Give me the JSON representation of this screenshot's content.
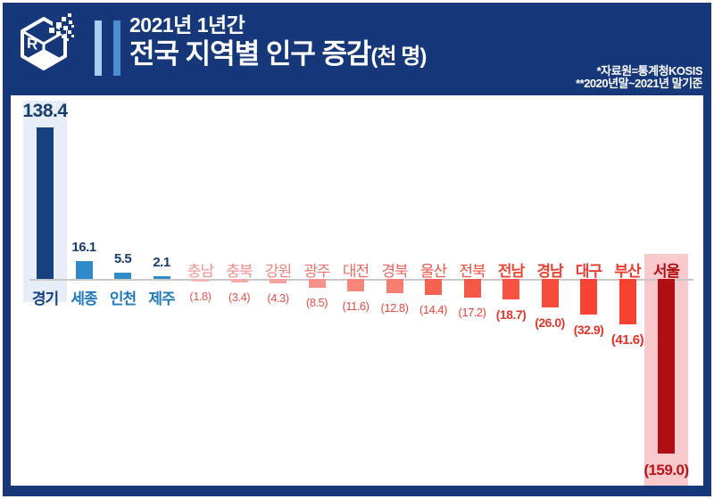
{
  "header": {
    "title_line1": "2021년 1년간",
    "title_line2": "전국 지역별 인구 증감",
    "title_unit": "(천 명)",
    "source_line1": "*자료원=통계청KOSIS",
    "source_line2": "**2020년말~2021년 말기준",
    "logo_name": "r-cube-pixel-logo"
  },
  "colors": {
    "frame": "#16387b",
    "header_bg": "#16387b",
    "title_text": "#ffffff",
    "accent_bar_light": "#a9cdee",
    "accent_bar_medium": "#4b8ed2",
    "axis": "#c8c8c8",
    "highlight_gyeonggi": "#e7eef8",
    "highlight_seoul": "#fac9cc"
  },
  "chart_data": {
    "type": "bar",
    "title": "전국 지역별 인구 증감(천 명)",
    "subtitle": "2021년 1년간",
    "unit": "천 명",
    "orientation": "vertical",
    "grid": false,
    "legend": false,
    "baseline": 0,
    "ylim": [
      -159.0,
      138.4
    ],
    "categories": [
      "경기",
      "세종",
      "인천",
      "제주",
      "충남",
      "충북",
      "강원",
      "광주",
      "대전",
      "경북",
      "울산",
      "전북",
      "전남",
      "경남",
      "대구",
      "부산",
      "서울"
    ],
    "values": [
      138.4,
      16.1,
      5.5,
      2.1,
      -1.8,
      -3.4,
      -4.3,
      -8.5,
      -11.6,
      -12.8,
      -14.4,
      -17.2,
      -18.7,
      -26.0,
      -32.9,
      -41.6,
      -159.0
    ],
    "value_labels": [
      "138.4",
      "16.1",
      "5.5",
      "2.1",
      "(1.8)",
      "(3.4)",
      "(4.3)",
      "(8.5)",
      "(11.6)",
      "(12.8)",
      "(14.4)",
      "(17.2)",
      "(18.7)",
      "(26.0)",
      "(32.9)",
      "(41.6)",
      "(159.0)"
    ],
    "highlighted_categories": [
      "경기",
      "서울"
    ],
    "regions": [
      {
        "id": "gyeonggi",
        "name": "경기",
        "value": 138.4,
        "display": "138.4",
        "bar": "#15417e",
        "nameColor": "#15417e",
        "valueColor": "#173e6d",
        "bold": true,
        "highlight": "#e7eef8"
      },
      {
        "id": "sejong",
        "name": "세종",
        "value": 16.1,
        "display": "16.1",
        "bar": "#2f8ac9",
        "nameColor": "#1f7ab9",
        "valueColor": "#173e6d",
        "bold": true,
        "highlight": null
      },
      {
        "id": "incheon",
        "name": "인천",
        "value": 5.5,
        "display": "5.5",
        "bar": "#2f8ac9",
        "nameColor": "#1f7ab9",
        "valueColor": "#173e6d",
        "bold": true,
        "highlight": null
      },
      {
        "id": "jeju",
        "name": "제주",
        "value": 2.1,
        "display": "2.1",
        "bar": "#2f8ac9",
        "nameColor": "#1f7ab9",
        "valueColor": "#173e6d",
        "bold": true,
        "highlight": null
      },
      {
        "id": "chungnam",
        "name": "충남",
        "value": -1.8,
        "display": "(1.8)",
        "bar": "#f7b6b2",
        "nameColor": "#f09490",
        "valueColor": "#e8564f",
        "bold": false,
        "highlight": null
      },
      {
        "id": "chungbuk",
        "name": "충북",
        "value": -3.4,
        "display": "(3.4)",
        "bar": "#f7aba6",
        "nameColor": "#f08b86",
        "valueColor": "#e8544d",
        "bold": false,
        "highlight": null
      },
      {
        "id": "gangwon",
        "name": "강원",
        "value": -4.3,
        "display": "(4.3)",
        "bar": "#f7a29c",
        "nameColor": "#f0837d",
        "valueColor": "#e8514a",
        "bold": false,
        "highlight": null
      },
      {
        "id": "gwangju",
        "name": "광주",
        "value": -8.5,
        "display": "(8.5)",
        "bar": "#f79189",
        "nameColor": "#ef746d",
        "valueColor": "#e84e47",
        "bold": false,
        "highlight": null
      },
      {
        "id": "daejeon",
        "name": "대전",
        "value": -11.6,
        "display": "(11.6)",
        "bar": "#f7867d",
        "nameColor": "#ef6c63",
        "valueColor": "#e84b44",
        "bold": false,
        "highlight": null
      },
      {
        "id": "gyeongbuk",
        "name": "경북",
        "value": -12.8,
        "display": "(12.8)",
        "bar": "#f77c72",
        "nameColor": "#ef645b",
        "valueColor": "#e84841",
        "bold": false,
        "highlight": null
      },
      {
        "id": "ulsan",
        "name": "울산",
        "value": -14.4,
        "display": "(14.4)",
        "bar": "#f7614f",
        "nameColor": "#ee5443",
        "valueColor": "#e8443c",
        "bold": false,
        "highlight": null
      },
      {
        "id": "jeonbuk",
        "name": "전북",
        "value": -17.2,
        "display": "(17.2)",
        "bar": "#f75948",
        "nameColor": "#ee4f3f",
        "valueColor": "#e84139",
        "bold": false,
        "highlight": null
      },
      {
        "id": "jeonnam",
        "name": "전남",
        "value": -18.7,
        "display": "(18.7)",
        "bar": "#f75243",
        "nameColor": "#ec4738",
        "valueColor": "#e03b31",
        "bold": true,
        "highlight": null
      },
      {
        "id": "gyeongnam",
        "name": "경남",
        "value": -26.0,
        "display": "(26.0)",
        "bar": "#f74b3c",
        "nameColor": "#ec4233",
        "valueColor": "#e0382e",
        "bold": true,
        "highlight": null
      },
      {
        "id": "daegu",
        "name": "대구",
        "value": -32.9,
        "display": "(32.9)",
        "bar": "#f74435",
        "nameColor": "#ec3c2e",
        "valueColor": "#e0342b",
        "bold": true,
        "highlight": null
      },
      {
        "id": "busan",
        "name": "부산",
        "value": -41.6,
        "display": "(41.6)",
        "bar": "#f74232",
        "nameColor": "#ec3a2c",
        "valueColor": "#e03229",
        "bold": true,
        "highlight": null
      },
      {
        "id": "seoul",
        "name": "서울",
        "value": -159.0,
        "display": "(159.0)",
        "bar": "#b00e13",
        "nameColor": "#b00e13",
        "valueColor": "#b5161b",
        "bold": true,
        "highlight": "#fac9cc"
      }
    ]
  }
}
